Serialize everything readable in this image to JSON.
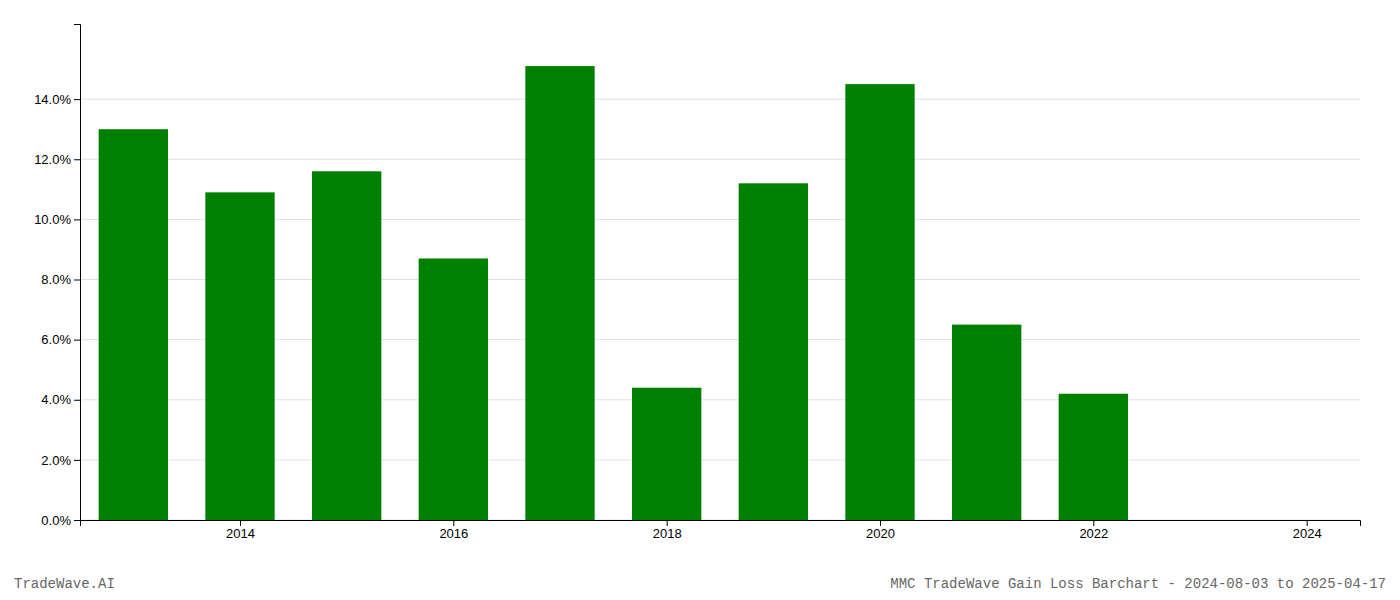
{
  "chart_data": {
    "type": "bar",
    "x": [
      2013,
      2014,
      2015,
      2016,
      2017,
      2018,
      2019,
      2020,
      2021,
      2022
    ],
    "values": [
      0.13,
      0.109,
      0.116,
      0.087,
      0.151,
      0.044,
      0.112,
      0.145,
      0.065,
      0.042
    ],
    "color": "#008000",
    "xlim": [
      2012.5,
      2024.5
    ],
    "xticks": [
      2014,
      2016,
      2018,
      2020,
      2022,
      2024
    ],
    "ylim": [
      0.0,
      0.165
    ],
    "yticks": [
      {
        "value": 0.0,
        "label": "0.0%"
      },
      {
        "value": 0.02,
        "label": "2.0%"
      },
      {
        "value": 0.04,
        "label": "4.0%"
      },
      {
        "value": 0.06,
        "label": "6.0%"
      },
      {
        "value": 0.08,
        "label": "8.0%"
      },
      {
        "value": 0.1,
        "label": "10.0%"
      },
      {
        "value": 0.12,
        "label": "12.0%"
      },
      {
        "value": 0.14,
        "label": "14.0%"
      }
    ],
    "grid": true,
    "annotations": [
      "TradeWave.AI",
      "MMC TradeWave Gain Loss Barchart - 2024-08-03 to 2025-04-17"
    ]
  }
}
